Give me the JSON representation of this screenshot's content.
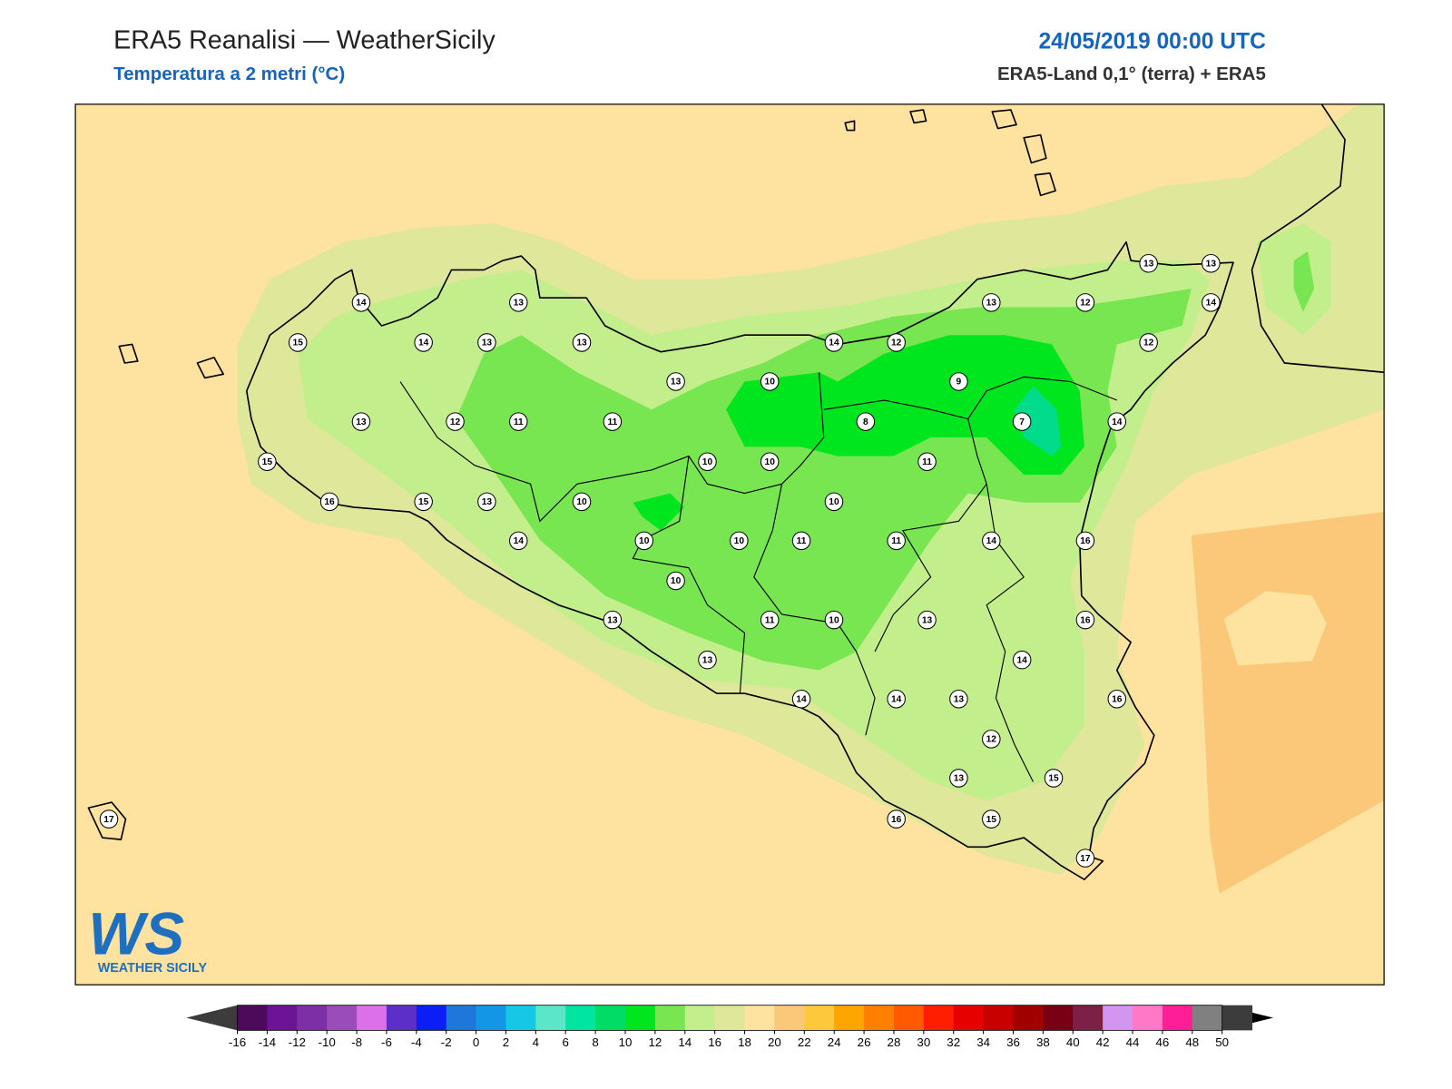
{
  "header": {
    "title": "ERA5 Reanalisi — WeatherSicily",
    "subtitle": "Temperatura a 2 metri (°C)",
    "date": "24/05/2019 00:00 UTC",
    "source": "ERA5-Land 0,1° (terra) + ERA5"
  },
  "logo": {
    "mark": "WS",
    "name": "WEATHER SICILY"
  },
  "map": {
    "stations": [
      14,
      13,
      15,
      14,
      13,
      13,
      13,
      10,
      14,
      12,
      13,
      12,
      13,
      13,
      14,
      12,
      9,
      7,
      14,
      8,
      11,
      13,
      12,
      11,
      11,
      10,
      10,
      15,
      16,
      15,
      13,
      10,
      10,
      14,
      10,
      10,
      11,
      11,
      14,
      16,
      10,
      13,
      11,
      10,
      13,
      16,
      14,
      13,
      14,
      14,
      13,
      16,
      12,
      13,
      15,
      17,
      16,
      15,
      17
    ],
    "colorbar": {
      "ticks": [
        -16,
        -14,
        -12,
        -10,
        -8,
        -6,
        -4,
        -2,
        0,
        2,
        4,
        6,
        8,
        10,
        12,
        14,
        16,
        18,
        20,
        22,
        24,
        26,
        28,
        30,
        32,
        34,
        36,
        38,
        40,
        42,
        44,
        46,
        48,
        50
      ],
      "colors": [
        "#4b0a5a",
        "#6b1596",
        "#7d2fa6",
        "#9a4cb8",
        "#dc70e8",
        "#5c2fc8",
        "#0a1ef5",
        "#1e78dc",
        "#1496e6",
        "#14c8e6",
        "#5ae6c8",
        "#00e6a0",
        "#00dc64",
        "#00e61e",
        "#78e650",
        "#c3ee8c",
        "#dfe79a",
        "#fde2a0",
        "#fbc87a",
        "#fdc83c",
        "#ffa500",
        "#ff8000",
        "#ff5a00",
        "#ff1e00",
        "#e60000",
        "#c80000",
        "#a00000",
        "#780014",
        "#7d2046",
        "#d296f0",
        "#ff78c8",
        "#ff1e96",
        "#808080",
        "#3c3c3c"
      ],
      "extend_colors": [
        "#3c3c3c",
        "#000000"
      ]
    }
  }
}
